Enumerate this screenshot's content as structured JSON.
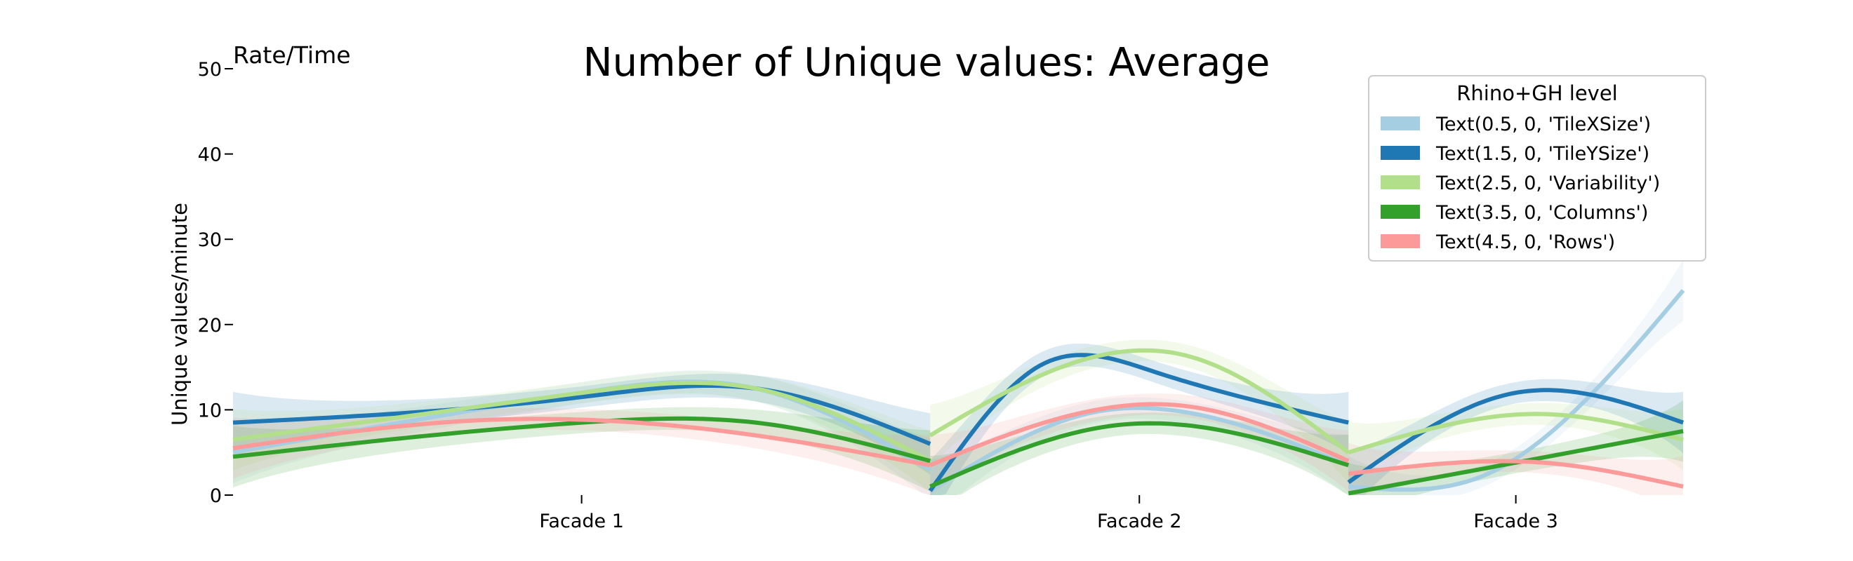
{
  "chart_data": {
    "type": "line",
    "title": "Number of Unique values: Average",
    "subtitle": "Rate/Time",
    "xlabel": "",
    "ylabel": "Unique values/minute",
    "ylim": [
      0,
      50
    ],
    "yticks": [
      0,
      10,
      20,
      30,
      40,
      50
    ],
    "categories": [
      "Facade 1",
      "Facade 2",
      "Facade 3"
    ],
    "grid": false,
    "legend": {
      "title": "Rhino+GH level",
      "placement": "top-right"
    },
    "facades": [
      {
        "name": "Facade 1",
        "x_range": [
          0,
          50
        ]
      },
      {
        "name": "Facade 2",
        "x_range": [
          50,
          80
        ]
      },
      {
        "name": "Facade 3",
        "x_range": [
          80,
          104
        ]
      }
    ],
    "series": [
      {
        "name": "Text(0.5, 0, 'TileXSize')",
        "color": "#a6cee3",
        "segments": [
          {
            "x": [
              0,
              25,
              37.5,
              50
            ],
            "y": [
              5,
              12,
              12.5,
              3
            ]
          },
          {
            "x": [
              50,
              62,
              68,
              80
            ],
            "y": [
              0.5,
              9.8,
              9.8,
              3.5
            ]
          },
          {
            "x": [
              80,
              90,
              104
            ],
            "y": [
              1,
              2.5,
              24
            ]
          }
        ]
      },
      {
        "name": "Text(1.5, 0, 'TileYSize')",
        "color": "#1f78b4",
        "segments": [
          {
            "x": [
              0,
              25,
              37.5,
              50
            ],
            "y": [
              8.5,
              11.5,
              12.5,
              6
            ]
          },
          {
            "x": [
              50,
              58,
              66,
              80
            ],
            "y": [
              0.5,
              15.3,
              14.5,
              8.5
            ]
          },
          {
            "x": [
              80,
              92,
              104
            ],
            "y": [
              1.5,
              12,
              8.5
            ]
          }
        ]
      },
      {
        "name": "Text(2.5, 0, 'Variability')",
        "color": "#b2df8a",
        "segments": [
          {
            "x": [
              0,
              25,
              37.5,
              50
            ],
            "y": [
              6.5,
              12,
              12.5,
              4
            ]
          },
          {
            "x": [
              50,
              68,
              80
            ],
            "y": [
              7,
              16.5,
              5
            ]
          },
          {
            "x": [
              80,
              94,
              104
            ],
            "y": [
              5,
              9.5,
              6.5
            ]
          }
        ]
      },
      {
        "name": "Text(3.5, 0, 'Columns')",
        "color": "#33a02c",
        "segments": [
          {
            "x": [
              0,
              25,
              37.5,
              50
            ],
            "y": [
              4.5,
              8.5,
              8.5,
              4
            ]
          },
          {
            "x": [
              50,
              64,
              80
            ],
            "y": [
              1,
              8.3,
              3.5
            ]
          },
          {
            "x": [
              80,
              90,
              104
            ],
            "y": [
              0.2,
              3.2,
              7.5
            ]
          }
        ]
      },
      {
        "name": "Text(4.5, 0, 'Rows')",
        "color": "#fb9a99",
        "segments": [
          {
            "x": [
              0,
              18,
              37.5,
              50
            ],
            "y": [
              5.5,
              8.8,
              7,
              3.5
            ]
          },
          {
            "x": [
              50,
              68,
              80
            ],
            "y": [
              3.5,
              10.5,
              4
            ]
          },
          {
            "x": [
              80,
              94,
              104
            ],
            "y": [
              2.5,
              3.8,
              1
            ]
          }
        ]
      }
    ]
  }
}
